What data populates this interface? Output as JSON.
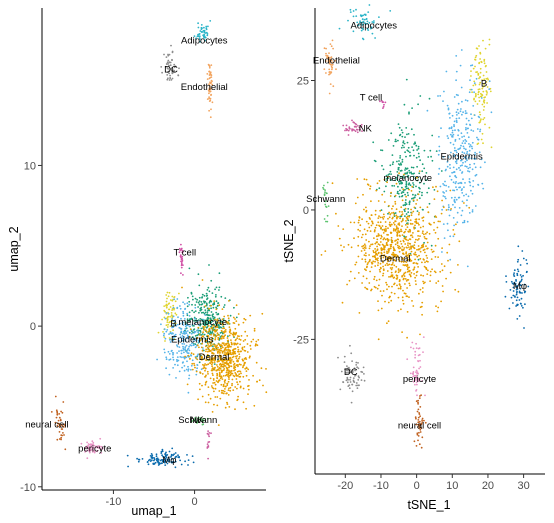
{
  "chart_data": [
    {
      "type": "scatter",
      "xlabel": "umap_1",
      "ylabel": "umap_2",
      "xlim": [
        -18.8,
        8.8
      ],
      "ylim": [
        -10.2,
        19.8
      ],
      "xticks": [
        -10,
        0
      ],
      "yticks": [
        -10,
        0,
        10
      ],
      "grid": false,
      "clusters": [
        {
          "name": "Adipocytes",
          "color": "#2bb4c8",
          "cx": 1.0,
          "cy": 18.3,
          "sx": 0.4,
          "sy": 0.35,
          "n": 45,
          "label_x": 1.2,
          "label_y": 17.8
        },
        {
          "name": "DC",
          "color": "#8c8c8c",
          "cx": -3.0,
          "cy": 16.1,
          "sx": 0.45,
          "sy": 0.5,
          "n": 55,
          "label_x": -2.9,
          "label_y": 16.0
        },
        {
          "name": "Endothelial",
          "color": "#f2a45f",
          "cx": 1.9,
          "cy": 14.9,
          "sx": 0.12,
          "sy": 0.9,
          "n": 50,
          "label_x": 1.2,
          "label_y": 14.9
        },
        {
          "name": "T cell",
          "color": "#d152a6",
          "cx": -1.6,
          "cy": 4.3,
          "sx": 0.15,
          "sy": 0.6,
          "n": 25,
          "label_x": -1.2,
          "label_y": 4.6
        },
        {
          "name": "B",
          "color": "#e0d42f",
          "cx": -3.1,
          "cy": 0.8,
          "sx": 0.5,
          "sy": 0.7,
          "n": 75,
          "label_x": -2.6,
          "label_y": 0.2
        },
        {
          "name": "melanocyte",
          "color": "#1b9e77",
          "cx": 1.5,
          "cy": 0.4,
          "sx": 1.2,
          "sy": 1.1,
          "n": 320,
          "label_x": 1.0,
          "label_y": 0.3
        },
        {
          "name": "Epidermis",
          "color": "#56b4e9",
          "cx": -1.5,
          "cy": -0.8,
          "sx": 1.1,
          "sy": 1.1,
          "n": 230,
          "label_x": -0.3,
          "label_y": -0.8
        },
        {
          "name": "Dermal",
          "color": "#e69f00",
          "cx": 3.7,
          "cy": -2.0,
          "sx": 1.7,
          "sy": 1.3,
          "n": 700,
          "label_x": 2.4,
          "label_y": -1.9
        },
        {
          "name": "Schwann",
          "color": "#5cc46f",
          "cx": 0.5,
          "cy": -5.9,
          "sx": 0.5,
          "sy": 0.12,
          "n": 25,
          "label_x": 0.4,
          "label_y": -5.8
        },
        {
          "name": "NK",
          "color": "#cc5fa0",
          "cx": 1.7,
          "cy": -7.2,
          "sx": 0.12,
          "sy": 0.35,
          "n": 14,
          "label_x": 0.3,
          "label_y": -5.8
        },
        {
          "name": "neural cell",
          "color": "#c0611f",
          "cx": -16.6,
          "cy": -5.9,
          "sx": 0.35,
          "sy": 0.6,
          "n": 40,
          "label_x": -18.2,
          "label_y": -6.1
        },
        {
          "name": "pericyte",
          "color": "#e893c5",
          "cx": -12.6,
          "cy": -7.6,
          "sx": 0.55,
          "sy": 0.22,
          "n": 55,
          "label_x": -12.3,
          "label_y": -7.6
        },
        {
          "name": "Mφ",
          "color": "#0a6bad",
          "cx": -3.9,
          "cy": -8.3,
          "sx": 1.6,
          "sy": 0.25,
          "n": 110,
          "label_x": -3.1,
          "label_y": -8.3
        }
      ]
    },
    {
      "type": "scatter",
      "xlabel": "tSNE_1",
      "ylabel": "tSNE_2",
      "xlim": [
        -28.5,
        36.0
      ],
      "ylim": [
        -51.0,
        39.0
      ],
      "xticks": [
        -20,
        -10,
        0,
        10,
        20,
        30
      ],
      "yticks": [
        -25,
        0,
        25
      ],
      "grid": false,
      "clusters": [
        {
          "name": "Adipocytes",
          "color": "#2bb4c8",
          "cx": -16.0,
          "cy": 36.3,
          "sx": 2.8,
          "sy": 1.6,
          "n": 55,
          "label_x": -12.0,
          "label_y": 35.7
        },
        {
          "name": "Endothelial",
          "color": "#f2a45f",
          "cx": -24.3,
          "cy": 28.4,
          "sx": 0.9,
          "sy": 2.0,
          "n": 50,
          "label_x": -22.5,
          "label_y": 29.0
        },
        {
          "name": "B",
          "color": "#e0d42f",
          "cx": 17.8,
          "cy": 24.0,
          "sx": 1.3,
          "sy": 5.0,
          "n": 110,
          "label_x": 18.9,
          "label_y": 24.5
        },
        {
          "name": "T cell",
          "color": "#d152a6",
          "cx": -9.7,
          "cy": 20.6,
          "sx": 0.5,
          "sy": 0.4,
          "n": 8,
          "label_x": -12.8,
          "label_y": 21.8
        },
        {
          "name": "NK",
          "color": "#cc5fa0",
          "cx": -17.4,
          "cy": 15.8,
          "sx": 1.5,
          "sy": 0.7,
          "n": 35,
          "label_x": -14.4,
          "label_y": 15.8
        },
        {
          "name": "Epidermis",
          "color": "#56b4e9",
          "cx": 12.5,
          "cy": 10.0,
          "sx": 3.3,
          "sy": 7.5,
          "n": 300,
          "label_x": 12.6,
          "label_y": 10.4
        },
        {
          "name": "melanocyte",
          "color": "#1b9e77",
          "cx": -3.0,
          "cy": 7.0,
          "sx": 3.3,
          "sy": 5.5,
          "n": 260,
          "label_x": -2.5,
          "label_y": 6.3
        },
        {
          "name": "Schwann",
          "color": "#5cc46f",
          "cx": -25.5,
          "cy": 2.5,
          "sx": 0.6,
          "sy": 2.0,
          "n": 20,
          "label_x": -25.5,
          "label_y": 2.2
        },
        {
          "name": "Dermal",
          "color": "#e69f00",
          "cx": -5.0,
          "cy": -7.5,
          "sx": 6.5,
          "sy": 5.5,
          "n": 800,
          "label_x": -6.0,
          "label_y": -9.3
        },
        {
          "name": "Mφ",
          "color": "#0a6bad",
          "cx": 28.5,
          "cy": -15.0,
          "sx": 1.4,
          "sy": 3.0,
          "n": 80,
          "label_x": 29.0,
          "label_y": -14.6
        },
        {
          "name": "DC",
          "color": "#8c8c8c",
          "cx": -18.5,
          "cy": -31.5,
          "sx": 1.8,
          "sy": 2.3,
          "n": 70,
          "label_x": -18.5,
          "label_y": -31.2
        },
        {
          "name": "pericyte",
          "color": "#e893c5",
          "cx": 0.0,
          "cy": -31.0,
          "sx": 0.8,
          "sy": 3.0,
          "n": 55,
          "label_x": 0.8,
          "label_y": -32.6
        },
        {
          "name": "neural cell",
          "color": "#c0611f",
          "cx": 0.8,
          "cy": -41.5,
          "sx": 0.5,
          "sy": 3.0,
          "n": 50,
          "label_x": 0.8,
          "label_y": -41.5
        }
      ]
    }
  ]
}
